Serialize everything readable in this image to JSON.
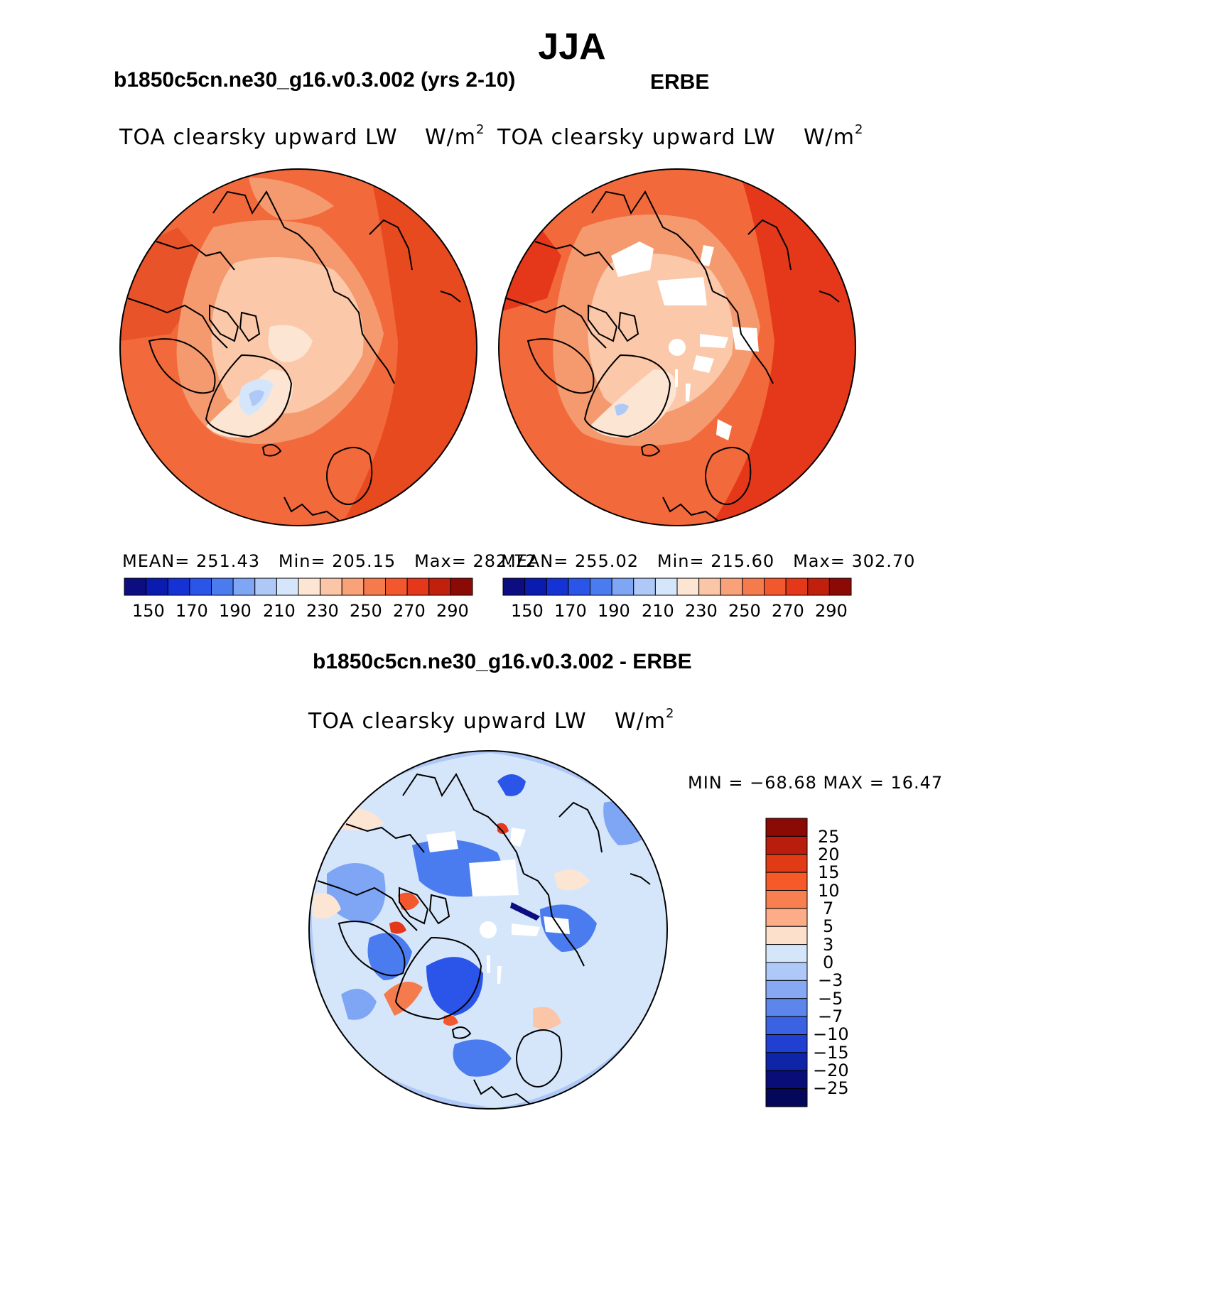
{
  "title": "JJA",
  "panels": [
    {
      "title": "b1850c5cn.ne30_g16.v0.3.002 (yrs 2-10)",
      "variable": "TOA clearsky upward LW",
      "units_base": "W/m",
      "units_exp": "2",
      "stats": {
        "mean_label": "MEAN=",
        "mean": "251.43",
        "min_label": "Min=",
        "min": "205.15",
        "max_label": "Max=",
        "max": "282.72"
      }
    },
    {
      "title": "ERBE",
      "variable": "TOA clearsky upward LW",
      "units_base": "W/m",
      "units_exp": "2",
      "stats": {
        "mean_label": "MEAN=",
        "mean": "255.02",
        "min_label": "Min=",
        "min": "215.60",
        "max_label": "Max=",
        "max": "302.70"
      }
    },
    {
      "title": "b1850c5cn.ne30_g16.v0.3.002 - ERBE",
      "variable": "TOA clearsky upward LW",
      "units_base": "W/m",
      "units_exp": "2",
      "minmax_text": "MIN = −68.68 MAX =  16.47"
    }
  ],
  "abs_colorbar": {
    "colors": [
      "#0b0d80",
      "#0a1cb0",
      "#1533d4",
      "#2a55e8",
      "#4a7cf0",
      "#7fa5f5",
      "#aec8f7",
      "#d6e6fa",
      "#fde5d3",
      "#fbc5a8",
      "#f9a27a",
      "#f57b4d",
      "#f2572e",
      "#e5381a",
      "#c1200d",
      "#8c0a05"
    ],
    "ticks": [
      "150",
      "170",
      "190",
      "210",
      "230",
      "250",
      "270",
      "290"
    ]
  },
  "diff_colorbar": {
    "colors": [
      "#8c0a05",
      "#b81d0d",
      "#e03a16",
      "#f65a28",
      "#f88050",
      "#fcac87",
      "#fde0cc",
      "#d6e6fa",
      "#aec8f7",
      "#87a9f3",
      "#5c86ec",
      "#3a62e2",
      "#1f40d0",
      "#0f25a8",
      "#080d78"
    ],
    "labels": [
      "25",
      "20",
      "15",
      "10",
      "7",
      "5",
      "3",
      "0",
      "−3",
      "−5",
      "−7",
      "−10",
      "−15",
      "−20",
      "−25"
    ]
  },
  "chart_data": {
    "type": "map",
    "projection": "north-polar-stereographic",
    "season": "JJA",
    "maps": [
      {
        "name": "b1850c5cn.ne30_g16.v0.3.002 (yrs 2-10)",
        "mean": 251.43,
        "min": 205.15,
        "max": 282.72,
        "levels": [
          150,
          160,
          170,
          180,
          190,
          200,
          210,
          220,
          230,
          240,
          250,
          260,
          270,
          280,
          290
        ]
      },
      {
        "name": "ERBE",
        "mean": 255.02,
        "min": 215.6,
        "max": 302.7,
        "levels": [
          150,
          160,
          170,
          180,
          190,
          200,
          210,
          220,
          230,
          240,
          250,
          260,
          270,
          280,
          290
        ]
      },
      {
        "name": "b1850c5cn.ne30_g16.v0.3.002 - ERBE",
        "min": -68.68,
        "max": 16.47,
        "levels": [
          -25,
          -20,
          -15,
          -10,
          -7,
          -5,
          -3,
          0,
          3,
          5,
          7,
          10,
          15,
          20,
          25
        ]
      }
    ]
  }
}
